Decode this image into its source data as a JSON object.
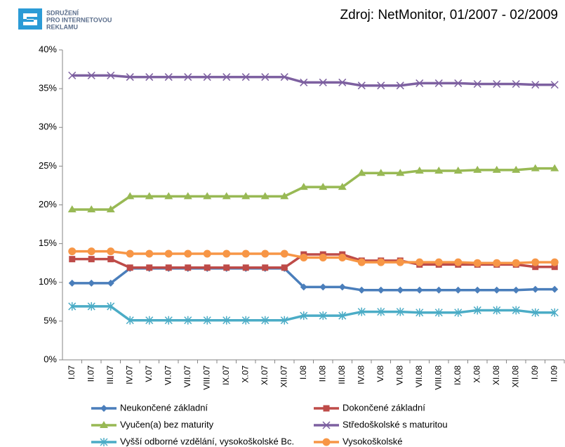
{
  "logo_text": [
    "SDRUŽENÍ",
    "PRO INTERNETOVOU",
    "REKLAMU"
  ],
  "chart_data": {
    "type": "line",
    "title": "Zdroj: NetMonitor, 01/2007 - 02/2009",
    "categories": [
      "I.07",
      "II.07",
      "III.07",
      "IV.07",
      "V.07",
      "VI.07",
      "VII.07",
      "VIII.07",
      "IX.07",
      "X.07",
      "XI.07",
      "XII.07",
      "I.08",
      "II.08",
      "III.08",
      "IV.08",
      "V.08",
      "VI.08",
      "VII.08",
      "VIII.08",
      "IX.08",
      "X.08",
      "XI.08",
      "XII.08",
      "I.09",
      "II.09"
    ],
    "ylim": [
      0,
      40
    ],
    "yticks": [
      {
        "value": 0,
        "label": "0%"
      },
      {
        "value": 5,
        "label": "5%"
      },
      {
        "value": 10,
        "label": "10%"
      },
      {
        "value": 15,
        "label": "15%"
      },
      {
        "value": 20,
        "label": "20%"
      },
      {
        "value": 25,
        "label": "25%"
      },
      {
        "value": 30,
        "label": "30%"
      },
      {
        "value": 35,
        "label": "35%"
      },
      {
        "value": 40,
        "label": "40%"
      }
    ],
    "grid": false,
    "legend": "bottom",
    "series": [
      {
        "name": "Neukončené základní",
        "color": "#4a7ebb",
        "marker": "diamond",
        "values": [
          9.9,
          9.9,
          9.9,
          11.8,
          11.8,
          11.8,
          11.8,
          11.8,
          11.8,
          11.8,
          11.8,
          11.8,
          9.4,
          9.4,
          9.4,
          9.0,
          9.0,
          9.0,
          9.0,
          9.0,
          9.0,
          9.0,
          9.0,
          9.0,
          9.1,
          9.1
        ]
      },
      {
        "name": "Dokončené základní",
        "color": "#be4b48",
        "marker": "square",
        "values": [
          13.0,
          13.0,
          13.0,
          11.9,
          11.9,
          11.9,
          11.9,
          11.9,
          11.9,
          11.9,
          11.9,
          11.9,
          13.6,
          13.6,
          13.6,
          12.8,
          12.8,
          12.8,
          12.3,
          12.3,
          12.3,
          12.3,
          12.3,
          12.3,
          12.0,
          12.0
        ]
      },
      {
        "name": "Vyučen(a) bez maturity",
        "color": "#98b954",
        "marker": "triangle",
        "values": [
          19.4,
          19.4,
          19.4,
          21.1,
          21.1,
          21.1,
          21.1,
          21.1,
          21.1,
          21.1,
          21.1,
          21.1,
          22.3,
          22.3,
          22.3,
          24.1,
          24.1,
          24.1,
          24.4,
          24.4,
          24.4,
          24.5,
          24.5,
          24.5,
          24.7,
          24.7
        ]
      },
      {
        "name": "Středoškolské s maturitou",
        "color": "#7d60a0",
        "marker": "x",
        "values": [
          36.7,
          36.7,
          36.7,
          36.5,
          36.5,
          36.5,
          36.5,
          36.5,
          36.5,
          36.5,
          36.5,
          36.5,
          35.8,
          35.8,
          35.8,
          35.4,
          35.4,
          35.4,
          35.7,
          35.7,
          35.7,
          35.6,
          35.6,
          35.6,
          35.5,
          35.5
        ]
      },
      {
        "name": "Vyšší odborné vzdělání, vysokoškolské Bc.",
        "color": "#4bacc6",
        "marker": "star",
        "values": [
          6.9,
          6.9,
          6.9,
          5.1,
          5.1,
          5.1,
          5.1,
          5.1,
          5.1,
          5.1,
          5.1,
          5.1,
          5.7,
          5.7,
          5.7,
          6.2,
          6.2,
          6.2,
          6.1,
          6.1,
          6.1,
          6.4,
          6.4,
          6.4,
          6.1,
          6.1
        ]
      },
      {
        "name": "Vysokoškolské",
        "color": "#f79646",
        "marker": "circle",
        "values": [
          14.0,
          14.0,
          14.0,
          13.7,
          13.7,
          13.7,
          13.7,
          13.7,
          13.7,
          13.7,
          13.7,
          13.7,
          13.2,
          13.2,
          13.2,
          12.6,
          12.6,
          12.6,
          12.6,
          12.6,
          12.6,
          12.5,
          12.5,
          12.5,
          12.6,
          12.6
        ]
      }
    ]
  }
}
